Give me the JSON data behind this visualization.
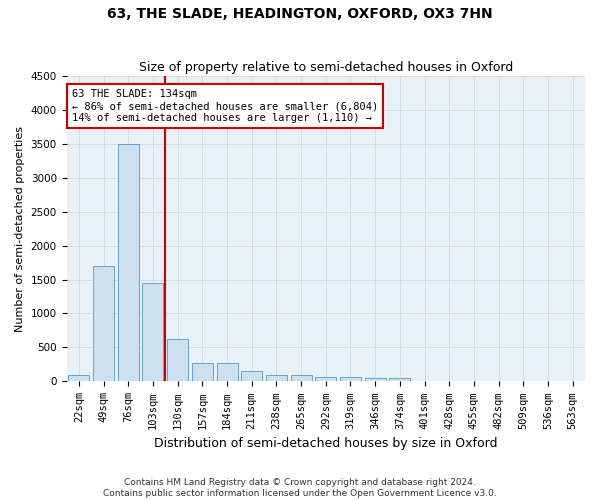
{
  "title": "63, THE SLADE, HEADINGTON, OXFORD, OX3 7HN",
  "subtitle": "Size of property relative to semi-detached houses in Oxford",
  "xlabel": "Distribution of semi-detached houses by size in Oxford",
  "ylabel": "Number of semi-detached properties",
  "footer_line1": "Contains HM Land Registry data © Crown copyright and database right 2024.",
  "footer_line2": "Contains public sector information licensed under the Open Government Licence v3.0.",
  "bin_labels": [
    "22sqm",
    "49sqm",
    "76sqm",
    "103sqm",
    "130sqm",
    "157sqm",
    "184sqm",
    "211sqm",
    "238sqm",
    "265sqm",
    "292sqm",
    "319sqm",
    "346sqm",
    "374sqm",
    "401sqm",
    "428sqm",
    "455sqm",
    "482sqm",
    "509sqm",
    "536sqm",
    "563sqm"
  ],
  "bar_values": [
    100,
    1700,
    3500,
    1450,
    620,
    275,
    265,
    150,
    100,
    95,
    65,
    60,
    50,
    45,
    10,
    5,
    3,
    2,
    1,
    0,
    0
  ],
  "bar_color": "#cce0f0",
  "bar_edge_color": "#5599cc",
  "grid_color": "#d0d8e0",
  "background_color": "#e8f0f8",
  "vline_x": 4.0,
  "vline_color": "#cc0000",
  "annotation_text_line1": "63 THE SLADE: 134sqm",
  "annotation_text_line2": "← 86% of semi-detached houses are smaller (6,804)",
  "annotation_text_line3": "14% of semi-detached houses are larger (1,110) →",
  "ylim": [
    0,
    4500
  ],
  "yticks": [
    0,
    500,
    1000,
    1500,
    2000,
    2500,
    3000,
    3500,
    4000,
    4500
  ],
  "annotation_box_facecolor": "#ffffff",
  "annotation_box_edgecolor": "#cc0000",
  "title_fontsize": 10,
  "subtitle_fontsize": 9,
  "ylabel_fontsize": 8,
  "xlabel_fontsize": 9,
  "tick_fontsize": 7.5,
  "annotation_fontsize": 7.5,
  "footer_fontsize": 6.5
}
